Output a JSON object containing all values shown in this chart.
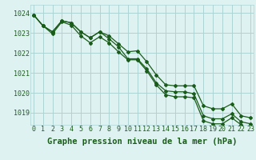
{
  "background_color": "#dff2f2",
  "grid_color": "#aed4d4",
  "line_color": "#1a5c1a",
  "marker_color": "#1a5c1a",
  "xlabel": "Graphe pression niveau de la mer (hPa)",
  "xlabel_fontsize": 7.5,
  "tick_fontsize": 6,
  "ylim": [
    1018.4,
    1024.4
  ],
  "xlim": [
    -0.3,
    23.3
  ],
  "yticks": [
    1019,
    1020,
    1021,
    1022,
    1023,
    1024
  ],
  "xticks": [
    0,
    1,
    2,
    3,
    4,
    5,
    6,
    7,
    8,
    9,
    10,
    11,
    12,
    13,
    14,
    15,
    16,
    17,
    18,
    19,
    20,
    21,
    22,
    23
  ],
  "series": [
    [
      1023.9,
      1023.35,
      1023.05,
      1023.6,
      1023.5,
      1023.05,
      1022.75,
      1023.05,
      1022.85,
      1022.45,
      1022.05,
      1022.1,
      1021.55,
      1020.9,
      1020.4,
      1020.35,
      1020.35,
      1020.35,
      1019.35,
      1019.2,
      1019.2,
      1019.45,
      1018.85,
      1018.75
    ],
    [
      1023.9,
      1023.35,
      1023.05,
      1023.6,
      1023.5,
      1023.05,
      1022.75,
      1023.05,
      1022.7,
      1022.3,
      1021.7,
      1021.7,
      1021.2,
      1020.5,
      1020.1,
      1020.05,
      1020.05,
      1019.95,
      1018.85,
      1018.7,
      1018.7,
      1018.95,
      1018.55,
      1018.45
    ],
    [
      1023.9,
      1023.35,
      1022.95,
      1023.55,
      1023.38,
      1022.85,
      1022.5,
      1022.8,
      1022.5,
      1022.05,
      1021.65,
      1021.65,
      1021.1,
      1020.4,
      1019.9,
      1019.8,
      1019.8,
      1019.75,
      1018.6,
      1018.45,
      1018.45,
      1018.75,
      1018.4,
      1018.3
    ]
  ]
}
